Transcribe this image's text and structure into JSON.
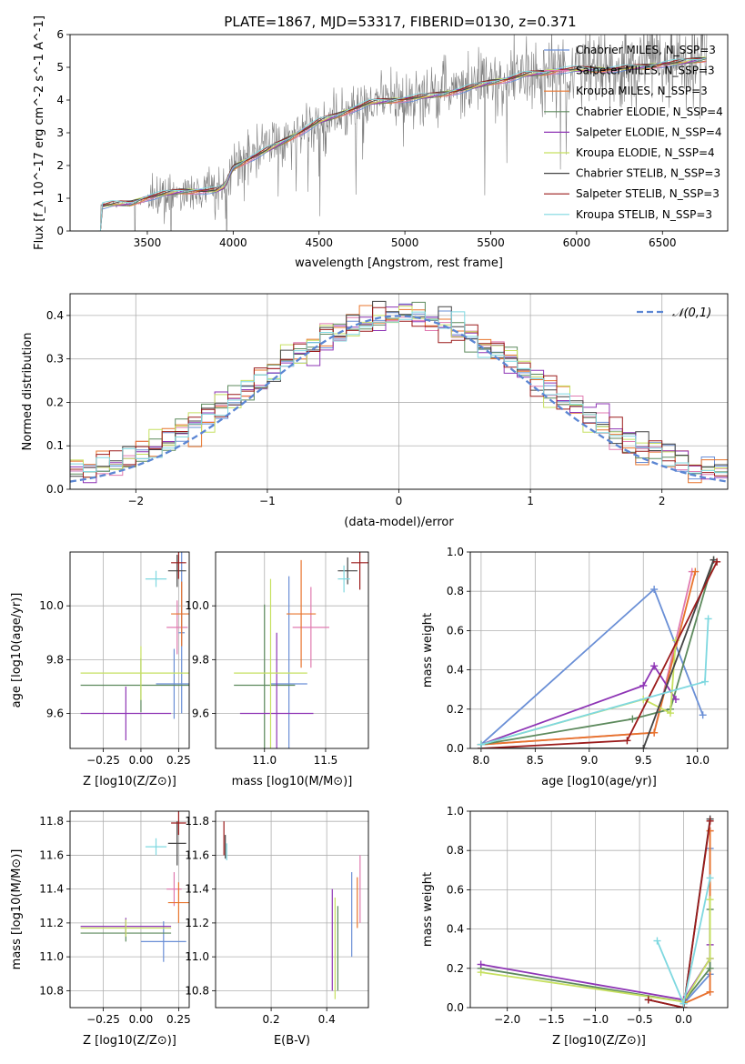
{
  "page_title": "PLATE=1867, MJD=53317, FIBERID=0130, z=0.371",
  "colors": {
    "chabrier_miles": "#6a8fd6",
    "salpeter_miles": "#e07ab0",
    "kroupa_miles": "#e8742c",
    "chabrier_elodie": "#5d8a5d",
    "salpeter_elodie": "#8e35b5",
    "kroupa_elodie": "#c6e060",
    "chabrier_stelib": "#444444",
    "salpeter_stelib": "#9b1b1b",
    "kroupa_stelib": "#7fd8e0",
    "data_spectrum": "#7f7f7f",
    "grid": "#b0b0b0",
    "normal_curve": "#5b86d3"
  },
  "chart_data": [
    {
      "id": "spectrum",
      "type": "line",
      "title": "PLATE=1867, MJD=53317, FIBERID=0130, z=0.371",
      "xlabel": "wavelength [Angstrom, rest frame]",
      "ylabel": "Flux [f_λ 10^-17 erg cm^-2 s^-1 A^-1]",
      "xlim": [
        3050,
        6880
      ],
      "ylim": [
        0,
        6
      ],
      "xticks": [
        3500,
        4000,
        4500,
        5000,
        5500,
        6000,
        6500
      ],
      "yticks": [
        0,
        1,
        2,
        3,
        4,
        5,
        6
      ],
      "grid": false,
      "legend_position": "top-right",
      "legend": [
        "Chabrier MILES, N_SSP=3",
        "Salpeter MILES, N_SSP=3",
        "Kroupa MILES, N_SSP=3",
        "Chabrier ELODIE, N_SSP=4",
        "Salpeter ELODIE, N_SSP=4",
        "Kroupa ELODIE, N_SSP=4",
        "Chabrier STELIB, N_SSP=3",
        "Salpeter STELIB, N_SSP=3",
        "Kroupa STELIB, N_SSP=3"
      ],
      "continuum": {
        "wavelength": [
          3215,
          3300,
          3400,
          3500,
          3600,
          3700,
          3800,
          3900,
          3950,
          4000,
          4100,
          4200,
          4300,
          4400,
          4500,
          4600,
          4700,
          4800,
          4900,
          5000,
          5100,
          5200,
          5300,
          5400,
          5500,
          5600,
          5700,
          5800,
          5900,
          6000,
          6100,
          6200,
          6300,
          6400,
          6500,
          6600,
          6750
        ],
        "flux": [
          0.8,
          0.82,
          0.8,
          0.95,
          1.05,
          1.15,
          1.2,
          1.25,
          1.4,
          2.0,
          2.3,
          2.55,
          2.8,
          3.05,
          3.3,
          3.45,
          3.65,
          3.85,
          3.95,
          4.05,
          4.15,
          4.25,
          4.35,
          4.45,
          4.55,
          4.6,
          4.7,
          4.75,
          4.85,
          4.9,
          4.95,
          5.0,
          5.05,
          5.1,
          5.15,
          5.15,
          5.2
        ]
      }
    },
    {
      "id": "residuals",
      "type": "histogram",
      "xlabel": "(data-model)/error",
      "ylabel": "Normed distribution",
      "xlim": [
        -2.5,
        2.5
      ],
      "ylim": [
        0,
        0.45
      ],
      "xticks": [
        -2,
        -1,
        0,
        1,
        2
      ],
      "yticks": [
        0.0,
        0.1,
        0.2,
        0.3,
        0.4
      ],
      "grid": true,
      "legend_position": "top-right",
      "legend": [
        "𝒩(0,1)"
      ],
      "normal_curve": {
        "mean": 0,
        "sigma": 1
      },
      "bin_width": 0.1,
      "bin_start": -2.5
    },
    {
      "id": "age_vs_Z",
      "type": "errorbar",
      "xlabel": "Z [log10(Z/Z⊙)]",
      "ylabel": "age [log10(age/yr)]",
      "xlim": [
        -0.47,
        0.32
      ],
      "ylim": [
        9.47,
        10.2
      ],
      "xticks": [
        -0.25,
        0.0,
        0.25
      ],
      "yticks": [
        9.6,
        9.8,
        10.0
      ],
      "grid": true,
      "points": [
        {
          "model": "chabrier_miles",
          "x": 0.22,
          "xerr": 0.12,
          "y": 9.71,
          "yerr": 0.13
        },
        {
          "model": "chabrier_miles",
          "x": 0.27,
          "xerr": 0.02,
          "y": 9.9,
          "yerr": 0.3
        },
        {
          "model": "salpeter_miles",
          "x": 0.24,
          "xerr": 0.07,
          "y": 9.92,
          "yerr": 0.1
        },
        {
          "model": "kroupa_miles",
          "x": 0.27,
          "xerr": 0.07,
          "y": 9.97,
          "yerr": 0.12
        },
        {
          "model": "chabrier_elodie",
          "x": 0.0,
          "xerr": 0.4,
          "y": 9.705,
          "yerr": 0.1
        },
        {
          "model": "salpeter_elodie",
          "x": -0.1,
          "xerr": 0.3,
          "y": 9.6,
          "yerr": 0.1
        },
        {
          "model": "kroupa_elodie",
          "x": 0.0,
          "xerr": 0.4,
          "y": 9.75,
          "yerr": 0.1
        },
        {
          "model": "chabrier_stelib",
          "x": 0.24,
          "xerr": 0.06,
          "y": 10.13,
          "yerr": 0.06
        },
        {
          "model": "salpeter_stelib",
          "x": 0.25,
          "xerr": 0.05,
          "y": 10.16,
          "yerr": 0.06
        },
        {
          "model": "kroupa_stelib",
          "x": 0.1,
          "xerr": 0.07,
          "y": 10.1,
          "yerr": 0.03
        }
      ]
    },
    {
      "id": "age_vs_mass",
      "type": "errorbar",
      "xlabel": "mass [log10(M/M⊙)]",
      "ylabel": "",
      "xlim": [
        10.6,
        11.85
      ],
      "ylim": [
        9.47,
        10.2
      ],
      "xticks": [
        11.0,
        11.5
      ],
      "yticks": [
        9.6,
        9.8,
        10.0
      ],
      "grid": true,
      "points": [
        {
          "model": "chabrier_miles",
          "x": 11.2,
          "xerr": 0.15,
          "y": 9.71,
          "yerr": 0.4
        },
        {
          "model": "salpeter_miles",
          "x": 11.38,
          "xerr": 0.15,
          "y": 9.92,
          "yerr": 0.15
        },
        {
          "model": "kroupa_miles",
          "x": 11.3,
          "xerr": 0.12,
          "y": 9.97,
          "yerr": 0.2
        },
        {
          "model": "chabrier_elodie",
          "x": 11.0,
          "xerr": 0.25,
          "y": 9.705,
          "yerr": 0.3
        },
        {
          "model": "salpeter_elodie",
          "x": 11.1,
          "xerr": 0.3,
          "y": 9.6,
          "yerr": 0.3
        },
        {
          "model": "kroupa_elodie",
          "x": 11.05,
          "xerr": 0.3,
          "y": 9.75,
          "yerr": 0.35
        },
        {
          "model": "chabrier_stelib",
          "x": 11.68,
          "xerr": 0.08,
          "y": 10.13,
          "yerr": 0.05
        },
        {
          "model": "salpeter_stelib",
          "x": 11.78,
          "xerr": 0.07,
          "y": 10.16,
          "yerr": 0.1
        },
        {
          "model": "kroupa_stelib",
          "x": 11.65,
          "xerr": 0.05,
          "y": 10.1,
          "yerr": 0.05
        }
      ]
    },
    {
      "id": "weight_vs_age",
      "type": "line",
      "xlabel": "age [log10(age/yr)]",
      "ylabel": "mass weight",
      "xlim": [
        7.9,
        10.28
      ],
      "ylim": [
        0,
        1
      ],
      "xticks": [
        8.0,
        8.5,
        9.0,
        9.5,
        10.0
      ],
      "yticks": [
        0.0,
        0.2,
        0.4,
        0.6,
        0.8,
        1.0
      ],
      "grid": true,
      "series": [
        {
          "model": "chabrier_miles",
          "x": [
            8.0,
            9.6,
            10.05
          ],
          "y": [
            0.02,
            0.81,
            0.17
          ]
        },
        {
          "model": "salpeter_miles",
          "x": [
            8.0,
            9.6,
            9.95
          ],
          "y": [
            0.02,
            0.08,
            0.9
          ]
        },
        {
          "model": "kroupa_miles",
          "x": [
            8.0,
            9.6,
            9.98
          ],
          "y": [
            0.02,
            0.08,
            0.9
          ]
        },
        {
          "model": "chabrier_elodie",
          "x": [
            8.0,
            9.4,
            9.75,
            10.15
          ],
          "y": [
            0.02,
            0.15,
            0.2,
            0.96
          ]
        },
        {
          "model": "salpeter_elodie",
          "x": [
            8.0,
            9.5,
            9.6,
            9.8
          ],
          "y": [
            0.02,
            0.32,
            0.42,
            0.25
          ]
        },
        {
          "model": "kroupa_elodie",
          "x": [
            8.0,
            9.5,
            9.75,
            9.8
          ],
          "y": [
            0.02,
            0.25,
            0.18,
            0.55
          ]
        },
        {
          "model": "chabrier_stelib",
          "x": [
            8.0,
            9.5,
            10.15
          ],
          "y": [
            0.0,
            0.0,
            0.96
          ]
        },
        {
          "model": "salpeter_stelib",
          "x": [
            8.0,
            9.35,
            10.18
          ],
          "y": [
            0.0,
            0.04,
            0.95
          ]
        },
        {
          "model": "kroupa_stelib",
          "x": [
            8.0,
            10.07,
            10.1
          ],
          "y": [
            0.02,
            0.34,
            0.66
          ]
        }
      ]
    },
    {
      "id": "mass_vs_Z",
      "type": "errorbar",
      "xlabel": "Z [log10(Z/Z⊙)]",
      "ylabel": "mass [log10(M/M⊙)]",
      "xlim": [
        -0.47,
        0.32
      ],
      "ylim": [
        10.7,
        11.86
      ],
      "xticks": [
        -0.25,
        0.0,
        0.25
      ],
      "yticks": [
        10.8,
        11.0,
        11.2,
        11.4,
        11.6,
        11.8
      ],
      "grid": true,
      "points": [
        {
          "model": "chabrier_miles",
          "x": 0.15,
          "xerr": 0.15,
          "y": 11.09,
          "yerr": 0.12
        },
        {
          "model": "salpeter_miles",
          "x": 0.22,
          "xerr": 0.05,
          "y": 11.4,
          "yerr": 0.1
        },
        {
          "model": "kroupa_miles",
          "x": 0.25,
          "xerr": 0.07,
          "y": 11.32,
          "yerr": 0.12
        },
        {
          "model": "chabrier_elodie",
          "x": -0.1,
          "xerr": 0.3,
          "y": 11.14,
          "yerr": 0.05
        },
        {
          "model": "salpeter_elodie",
          "x": -0.1,
          "xerr": 0.3,
          "y": 11.18,
          "yerr": 0.05
        },
        {
          "model": "kroupa_elodie",
          "x": -0.1,
          "xerr": 0.3,
          "y": 11.17,
          "yerr": 0.05
        },
        {
          "model": "chabrier_stelib",
          "x": 0.24,
          "xerr": 0.06,
          "y": 11.67,
          "yerr": 0.13
        },
        {
          "model": "salpeter_stelib",
          "x": 0.25,
          "xerr": 0.05,
          "y": 11.79,
          "yerr": 0.07
        },
        {
          "model": "kroupa_stelib",
          "x": 0.1,
          "xerr": 0.07,
          "y": 11.65,
          "yerr": 0.05
        }
      ]
    },
    {
      "id": "mass_vs_ebv",
      "type": "errorbar",
      "xlabel": "E(B-V)",
      "ylabel": "",
      "xlim": [
        0.0,
        0.55
      ],
      "ylim": [
        10.7,
        11.86
      ],
      "xticks": [
        0.2,
        0.4
      ],
      "yticks": [
        10.8,
        11.0,
        11.2,
        11.4,
        11.6,
        11.8
      ],
      "grid": true,
      "points": [
        {
          "model": "chabrier_miles",
          "x": 0.49,
          "xerr": 0.0,
          "y": 11.25,
          "yerr": 0.25
        },
        {
          "model": "salpeter_miles",
          "x": 0.52,
          "xerr": 0.0,
          "y": 11.4,
          "yerr": 0.2
        },
        {
          "model": "kroupa_miles",
          "x": 0.51,
          "xerr": 0.0,
          "y": 11.32,
          "yerr": 0.15
        },
        {
          "model": "salpeter_elodie",
          "x": 0.42,
          "xerr": 0.0,
          "y": 11.1,
          "yerr": 0.3
        },
        {
          "model": "kroupa_elodie",
          "x": 0.43,
          "xerr": 0.0,
          "y": 11.05,
          "yerr": 0.3
        },
        {
          "model": "chabrier_elodie",
          "x": 0.44,
          "xerr": 0.0,
          "y": 11.05,
          "yerr": 0.25
        },
        {
          "model": "salpeter_stelib",
          "x": 0.03,
          "xerr": 0.0,
          "y": 11.7,
          "yerr": 0.1
        },
        {
          "model": "chabrier_stelib",
          "x": 0.035,
          "xerr": 0.0,
          "y": 11.65,
          "yerr": 0.07
        },
        {
          "model": "kroupa_stelib",
          "x": 0.04,
          "xerr": 0.0,
          "y": 11.62,
          "yerr": 0.05
        }
      ]
    },
    {
      "id": "weight_vs_Z",
      "type": "line",
      "xlabel": "Z [log10(Z/Z⊙)]",
      "ylabel": "mass weight",
      "xlim": [
        -2.42,
        0.5
      ],
      "ylim": [
        0,
        1
      ],
      "xticks": [
        -2.0,
        -1.5,
        -1.0,
        -0.5,
        0.0
      ],
      "yticks": [
        0.0,
        0.2,
        0.4,
        0.6,
        0.8,
        1.0
      ],
      "grid": true,
      "series": [
        {
          "model": "chabrier_miles",
          "x": [
            0.0,
            0.3,
            0.3
          ],
          "y": [
            0.02,
            0.17,
            0.81
          ]
        },
        {
          "model": "salpeter_miles",
          "x": [
            0.0,
            0.3,
            0.3
          ],
          "y": [
            0.02,
            0.08,
            0.9
          ]
        },
        {
          "model": "kroupa_miles",
          "x": [
            0.0,
            0.3,
            0.3
          ],
          "y": [
            0.02,
            0.08,
            0.9
          ]
        },
        {
          "model": "chabrier_elodie",
          "x": [
            -2.3,
            0.0,
            0.3,
            0.3
          ],
          "y": [
            0.2,
            0.03,
            0.2,
            0.5
          ]
        },
        {
          "model": "salpeter_elodie",
          "x": [
            -2.3,
            0.0,
            0.3,
            0.3
          ],
          "y": [
            0.22,
            0.04,
            0.25,
            0.32
          ]
        },
        {
          "model": "kroupa_elodie",
          "x": [
            -2.3,
            0.0,
            0.3,
            0.3
          ],
          "y": [
            0.18,
            0.03,
            0.25,
            0.55
          ]
        },
        {
          "model": "chabrier_stelib",
          "x": [
            -0.4,
            0.0,
            0.3
          ],
          "y": [
            0.04,
            0.0,
            0.96
          ]
        },
        {
          "model": "salpeter_stelib",
          "x": [
            -0.4,
            0.0,
            0.3
          ],
          "y": [
            0.04,
            0.0,
            0.95
          ]
        },
        {
          "model": "kroupa_stelib",
          "x": [
            -0.3,
            0.0,
            0.3
          ],
          "y": [
            0.34,
            0.02,
            0.66
          ]
        }
      ]
    }
  ]
}
